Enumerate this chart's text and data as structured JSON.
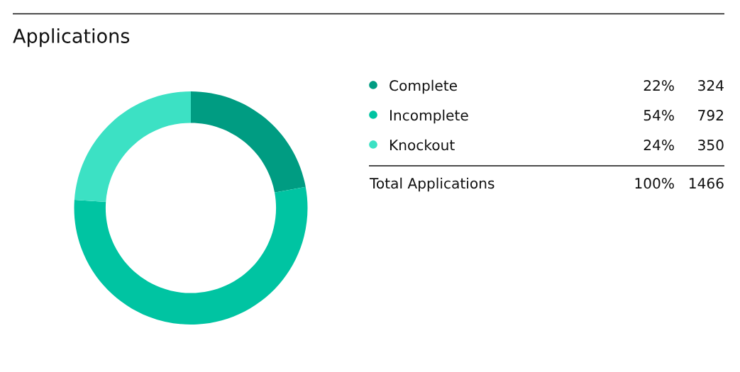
{
  "chart_data": {
    "type": "donut",
    "title": "Applications",
    "categories": [
      "Complete",
      "Incomplete",
      "Knockout"
    ],
    "values": [
      324,
      792,
      350
    ],
    "colors": [
      "#009c82",
      "#00c4a2",
      "#3ce1c4"
    ],
    "data_labels": true,
    "totals": [
      "100%",
      "1466"
    ],
    "annotations": [
      {
        "text": "22%",
        "x": "Complete"
      },
      {
        "text": "54%",
        "x": "Incomplete"
      },
      {
        "text": "24%",
        "x": "Knockout"
      },
      "Total Applications"
    ],
    "legend": "right"
  }
}
